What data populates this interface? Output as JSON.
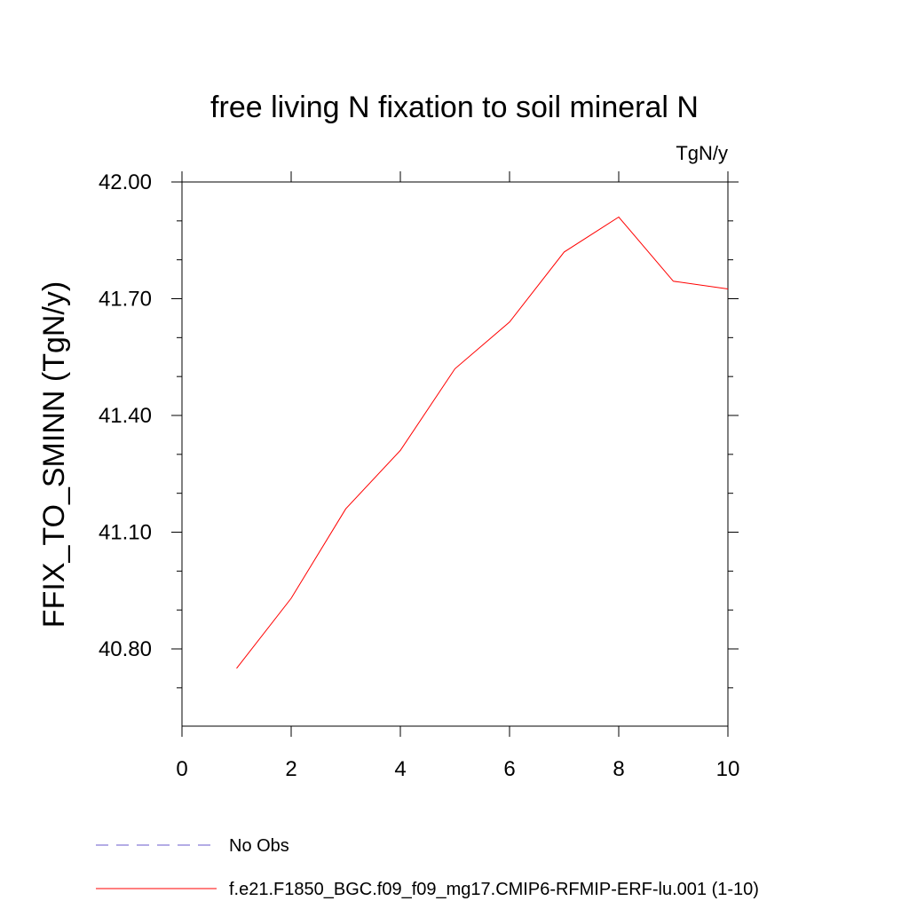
{
  "chart_data": {
    "type": "line",
    "title": "free living N fixation to soil mineral N",
    "units_label": "TgN/y",
    "ylabel": "FFIX_TO_SMINN  (TgN/y)",
    "xlabel": "",
    "xlim": [
      0,
      10
    ],
    "ylim": [
      40.6,
      42.0
    ],
    "x_ticks": [
      0,
      2,
      4,
      6,
      8,
      10
    ],
    "x_tick_labels": [
      "0",
      "2",
      "4",
      "6",
      "8",
      "10"
    ],
    "y_ticks": [
      40.8,
      41.1,
      41.4,
      41.7,
      42.0
    ],
    "y_tick_labels": [
      "40.80",
      "41.10",
      "41.40",
      "41.70",
      "42.00"
    ],
    "grid": false,
    "series": [
      {
        "name": "f.e21.F1850_BGC.f09_f09_mg17.CMIP6-RFMIP-ERF-lu.001 (1-10)",
        "color": "#ff0000",
        "style": "solid",
        "x": [
          1,
          2,
          3,
          4,
          5,
          6,
          7,
          8,
          9,
          10
        ],
        "values": [
          40.75,
          40.93,
          41.16,
          41.31,
          41.52,
          41.64,
          41.82,
          41.91,
          41.745,
          41.725
        ]
      }
    ],
    "legend": [
      {
        "label": "No Obs",
        "color": "#6a5acd",
        "style": "dashed"
      },
      {
        "label": "f.e21.F1850_BGC.f09_f09_mg17.CMIP6-RFMIP-ERF-lu.001 (1-10)",
        "color": "#ff0000",
        "style": "solid"
      }
    ],
    "legend_position": "bottom-left"
  }
}
